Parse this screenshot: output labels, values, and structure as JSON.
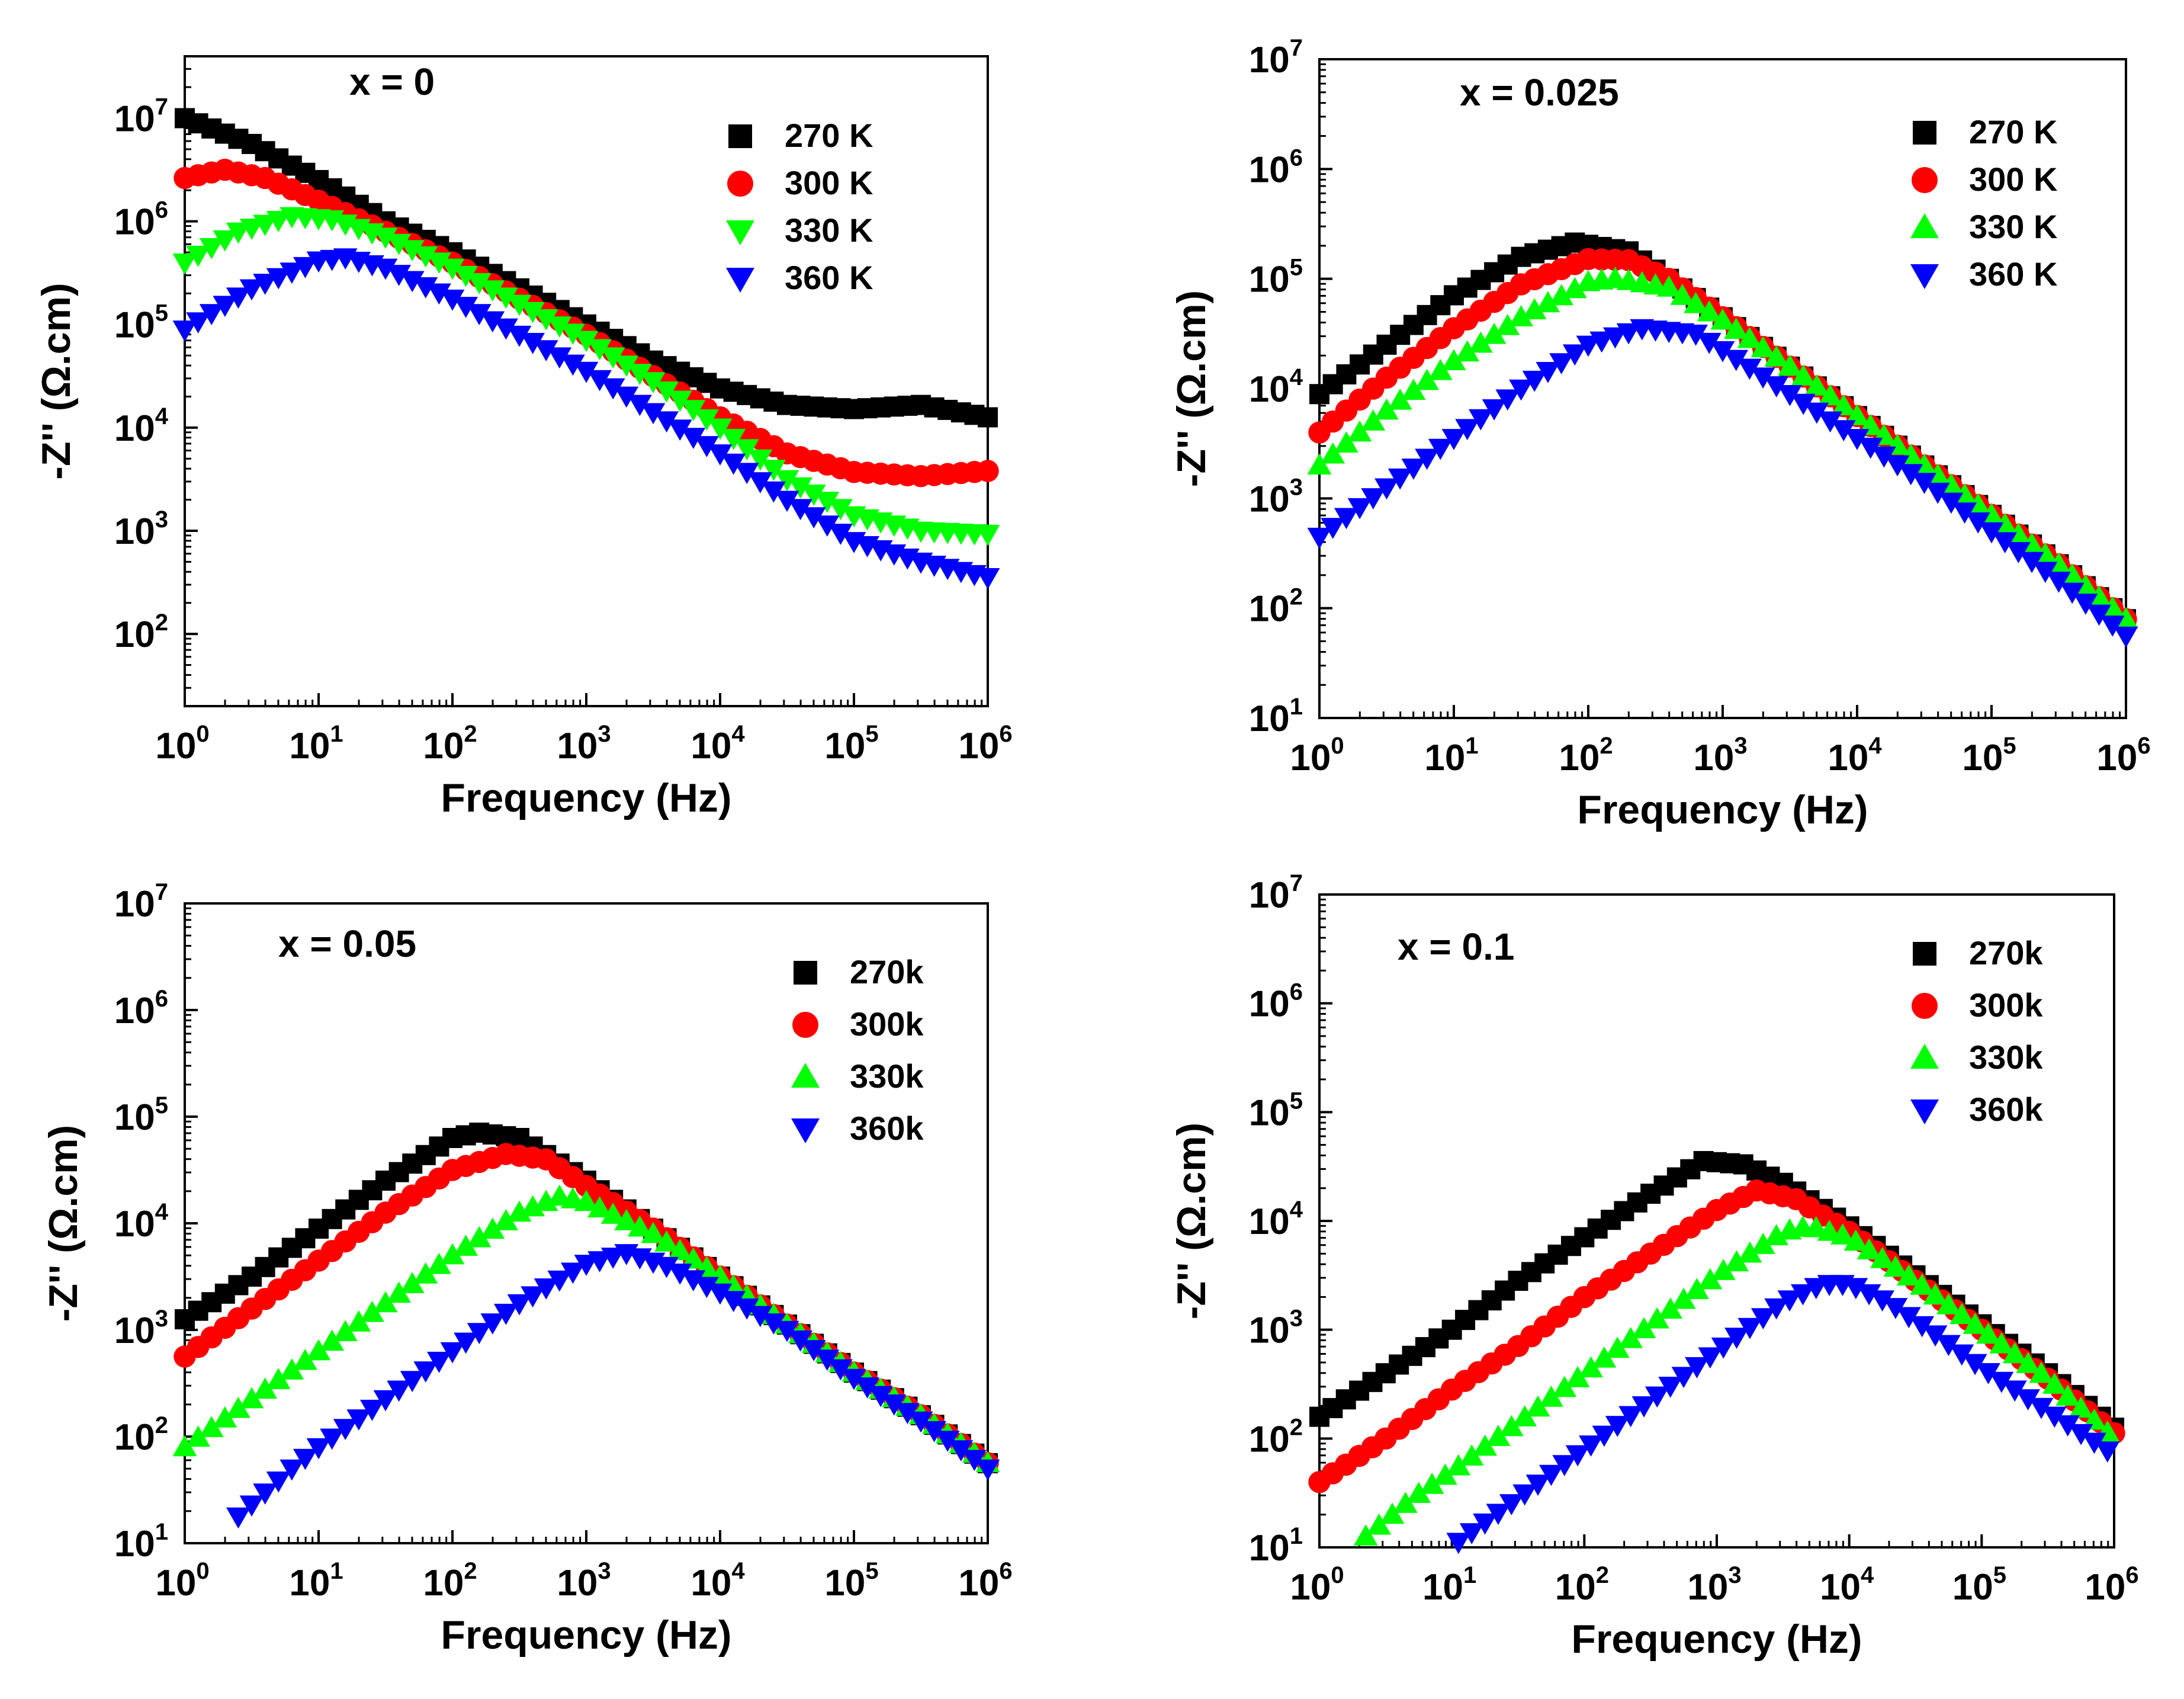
{
  "figure": {
    "background": "#ffffff"
  },
  "chart_data": [
    {
      "type": "scatter",
      "panel": "x = 0",
      "annotation": "x = 0",
      "xlabel": "Frequency (Hz)",
      "ylabel": "-Z'' (Ω.cm)",
      "xscale": "log",
      "yscale": "log",
      "xlim_log10": [
        0,
        6
      ],
      "ylim_log10": [
        1.3,
        7.6
      ],
      "xtick_exponents": [
        0,
        1,
        2,
        3,
        4,
        5,
        6
      ],
      "ytick_exponents": [
        2,
        3,
        4,
        5,
        6,
        7
      ],
      "tick_base": "10",
      "legend_position": "top-right",
      "grid": false,
      "series": [
        {
          "name": "270 K",
          "marker": "square",
          "color": "#000000",
          "logx": [
            0,
            0.5,
            1,
            1.5,
            2,
            2.5,
            3,
            3.5,
            4,
            4.5,
            5,
            5.5,
            6
          ],
          "logy": [
            7.0,
            6.75,
            6.4,
            6.0,
            5.7,
            5.35,
            5.0,
            4.65,
            4.38,
            4.22,
            4.18,
            4.22,
            4.1
          ]
        },
        {
          "name": "300 K",
          "marker": "circle",
          "color": "#ff0000",
          "logx": [
            0,
            0.3,
            0.6,
            1,
            1.5,
            2,
            2.5,
            3,
            3.5,
            4,
            4.5,
            5,
            5.5,
            6
          ],
          "logy": [
            6.42,
            6.5,
            6.42,
            6.2,
            5.9,
            5.6,
            5.25,
            4.9,
            4.5,
            4.1,
            3.75,
            3.57,
            3.53,
            3.58
          ]
        },
        {
          "name": "330 K",
          "marker": "triangle-down",
          "color": "#00ff00",
          "logx": [
            0,
            0.4,
            0.8,
            1.1,
            1.5,
            2,
            2.5,
            3,
            3.5,
            4,
            4.5,
            5,
            5.5,
            6
          ],
          "logy": [
            5.6,
            5.9,
            6.05,
            6.02,
            5.85,
            5.55,
            5.2,
            4.85,
            4.45,
            4.0,
            3.5,
            3.15,
            3.0,
            2.97
          ]
        },
        {
          "name": "360 K",
          "marker": "triangle-down",
          "color": "#0000ff",
          "logx": [
            0,
            0.5,
            1,
            1.2,
            1.5,
            2,
            2.5,
            3,
            3.5,
            4,
            4.5,
            5,
            5.5,
            6
          ],
          "logy": [
            4.95,
            5.35,
            5.62,
            5.65,
            5.55,
            5.25,
            4.9,
            4.55,
            4.15,
            3.75,
            3.3,
            2.9,
            2.7,
            2.55
          ]
        }
      ]
    },
    {
      "type": "scatter",
      "panel": "x = 0.025",
      "annotation": "x = 0.025",
      "xlabel": "Frequency (Hz)",
      "ylabel": "-Z'' (Ω.cm)",
      "xscale": "log",
      "yscale": "log",
      "xlim_log10": [
        0,
        6
      ],
      "ylim_log10": [
        1,
        7
      ],
      "xtick_exponents": [
        0,
        1,
        2,
        3,
        4,
        5,
        6
      ],
      "ytick_exponents": [
        1,
        2,
        3,
        4,
        5,
        6,
        7
      ],
      "tick_base": "10",
      "legend_position": "top-right",
      "grid": false,
      "series": [
        {
          "name": "270 K",
          "marker": "square",
          "color": "#000000",
          "logx": [
            0,
            0.5,
            1,
            1.5,
            1.9,
            2.3,
            2.6,
            3,
            3.5,
            4,
            4.5,
            5,
            5.5,
            6
          ],
          "logy": [
            3.95,
            4.4,
            4.85,
            5.2,
            5.33,
            5.25,
            5.0,
            4.65,
            4.2,
            3.75,
            3.3,
            2.85,
            2.4,
            1.9
          ]
        },
        {
          "name": "300 K",
          "marker": "circle",
          "color": "#ff0000",
          "logx": [
            0,
            0.5,
            1,
            1.5,
            2,
            2.3,
            2.6,
            3,
            3.5,
            4,
            4.5,
            5,
            5.5,
            6
          ],
          "logy": [
            3.6,
            4.1,
            4.55,
            4.95,
            5.18,
            5.17,
            5.0,
            4.65,
            4.2,
            3.75,
            3.3,
            2.85,
            2.4,
            1.9
          ]
        },
        {
          "name": "330 K",
          "marker": "triangle-up",
          "color": "#00ff00",
          "logx": [
            0,
            0.5,
            1,
            1.5,
            2,
            2.2,
            2.6,
            3,
            3.5,
            4,
            4.5,
            5,
            5.5,
            6
          ],
          "logy": [
            3.3,
            3.8,
            4.25,
            4.65,
            4.97,
            5.0,
            4.92,
            4.62,
            4.2,
            3.75,
            3.3,
            2.85,
            2.4,
            1.9
          ]
        },
        {
          "name": "360 K",
          "marker": "triangle-down",
          "color": "#0000ff",
          "logx": [
            0,
            0.5,
            1,
            1.5,
            2,
            2.4,
            2.8,
            3,
            3.5,
            4,
            4.5,
            5,
            5.5,
            6
          ],
          "logy": [
            2.65,
            3.1,
            3.55,
            4.0,
            4.4,
            4.55,
            4.5,
            4.35,
            3.95,
            3.55,
            3.15,
            2.7,
            2.25,
            1.75
          ]
        }
      ]
    },
    {
      "type": "scatter",
      "panel": "x = 0.05",
      "annotation": "x = 0.05",
      "xlabel": "Frequency (Hz)",
      "ylabel": "-Z'' (Ω.cm)",
      "xscale": "log",
      "yscale": "log",
      "xlim_log10": [
        0,
        6
      ],
      "ylim_log10": [
        1,
        7
      ],
      "xtick_exponents": [
        0,
        1,
        2,
        3,
        4,
        5,
        6
      ],
      "ytick_exponents": [
        1,
        2,
        3,
        4,
        5,
        6,
        7
      ],
      "tick_base": "10",
      "legend_position": "top-right",
      "grid": false,
      "series": [
        {
          "name": "270k",
          "marker": "square",
          "color": "#000000",
          "logx": [
            0,
            0.5,
            1,
            1.5,
            2,
            2.2,
            2.5,
            3,
            3.5,
            4,
            4.5,
            5,
            5.5,
            6
          ],
          "logy": [
            3.1,
            3.5,
            3.95,
            4.4,
            4.8,
            4.85,
            4.8,
            4.4,
            3.95,
            3.5,
            3.05,
            2.6,
            2.2,
            1.75
          ]
        },
        {
          "name": "300k",
          "marker": "circle",
          "color": "#ff0000",
          "logx": [
            0,
            0.5,
            1,
            1.5,
            2,
            2.4,
            2.7,
            3,
            3.5,
            4,
            4.5,
            5,
            5.5,
            6
          ],
          "logy": [
            2.75,
            3.2,
            3.65,
            4.1,
            4.5,
            4.65,
            4.6,
            4.35,
            3.95,
            3.5,
            3.05,
            2.6,
            2.2,
            1.75
          ]
        },
        {
          "name": "330k",
          "marker": "triangle-up",
          "color": "#00ff00",
          "logx": [
            0,
            0.5,
            1,
            1.5,
            2,
            2.5,
            2.8,
            3,
            3.5,
            4,
            4.5,
            5,
            5.5,
            6
          ],
          "logy": [
            1.9,
            2.35,
            2.8,
            3.25,
            3.7,
            4.1,
            4.25,
            4.2,
            3.9,
            3.5,
            3.05,
            2.6,
            2.2,
            1.75
          ]
        },
        {
          "name": "360k",
          "marker": "triangle-down",
          "color": "#0000ff",
          "logx": [
            0.4,
            0.8,
            1,
            1.5,
            2,
            2.5,
            3,
            3.3,
            3.6,
            4,
            4.5,
            5,
            5.5,
            6
          ],
          "logy": [
            1.25,
            1.7,
            1.9,
            2.35,
            2.8,
            3.25,
            3.62,
            3.72,
            3.6,
            3.35,
            3.0,
            2.55,
            2.15,
            1.7
          ]
        }
      ]
    },
    {
      "type": "scatter",
      "panel": "x = 0.1",
      "annotation": "x = 0.1",
      "xlabel": "Frequency (Hz)",
      "ylabel": "-Z'' (Ω.cm)",
      "xscale": "log",
      "yscale": "log",
      "xlim_log10": [
        0,
        6
      ],
      "ylim_log10": [
        1,
        7
      ],
      "xtick_exponents": [
        0,
        1,
        2,
        3,
        4,
        5,
        6
      ],
      "ytick_exponents": [
        1,
        2,
        3,
        4,
        5,
        6,
        7
      ],
      "tick_base": "10",
      "legend_position": "top-right",
      "grid": false,
      "series": [
        {
          "name": "270k",
          "marker": "square",
          "color": "#000000",
          "logx": [
            0,
            0.5,
            1,
            1.5,
            2,
            2.5,
            2.9,
            3.2,
            3.5,
            4,
            4.5,
            5,
            5.5,
            6
          ],
          "logy": [
            2.2,
            2.6,
            3.0,
            3.45,
            3.85,
            4.25,
            4.55,
            4.52,
            4.35,
            3.95,
            3.5,
            3.05,
            2.6,
            2.1
          ]
        },
        {
          "name": "300k",
          "marker": "circle",
          "color": "#ff0000",
          "logx": [
            0,
            0.5,
            1,
            1.5,
            2,
            2.5,
            3,
            3.3,
            3.6,
            4,
            4.5,
            5,
            5.5,
            6
          ],
          "logy": [
            1.6,
            2.0,
            2.45,
            2.85,
            3.3,
            3.7,
            4.1,
            4.28,
            4.2,
            3.9,
            3.45,
            3.0,
            2.55,
            2.05
          ]
        },
        {
          "name": "330k",
          "marker": "triangle-up",
          "color": "#00ff00",
          "logx": [
            0.35,
            0.7,
            1,
            1.5,
            2,
            2.5,
            3,
            3.5,
            3.7,
            4,
            4.5,
            5,
            5.5,
            6
          ],
          "logy": [
            1.1,
            1.45,
            1.7,
            2.15,
            2.6,
            3.05,
            3.5,
            3.9,
            3.95,
            3.85,
            3.45,
            3.0,
            2.55,
            2.0
          ]
        },
        {
          "name": "360k",
          "marker": "triangle-down",
          "color": "#0000ff",
          "logx": [
            1.05,
            1.5,
            2,
            2.5,
            3,
            3.5,
            3.8,
            4,
            4.3,
            4.6,
            5,
            5.5,
            6
          ],
          "logy": [
            1.05,
            1.45,
            1.9,
            2.35,
            2.8,
            3.25,
            3.42,
            3.42,
            3.25,
            3.0,
            2.65,
            2.25,
            1.85
          ]
        }
      ]
    }
  ]
}
